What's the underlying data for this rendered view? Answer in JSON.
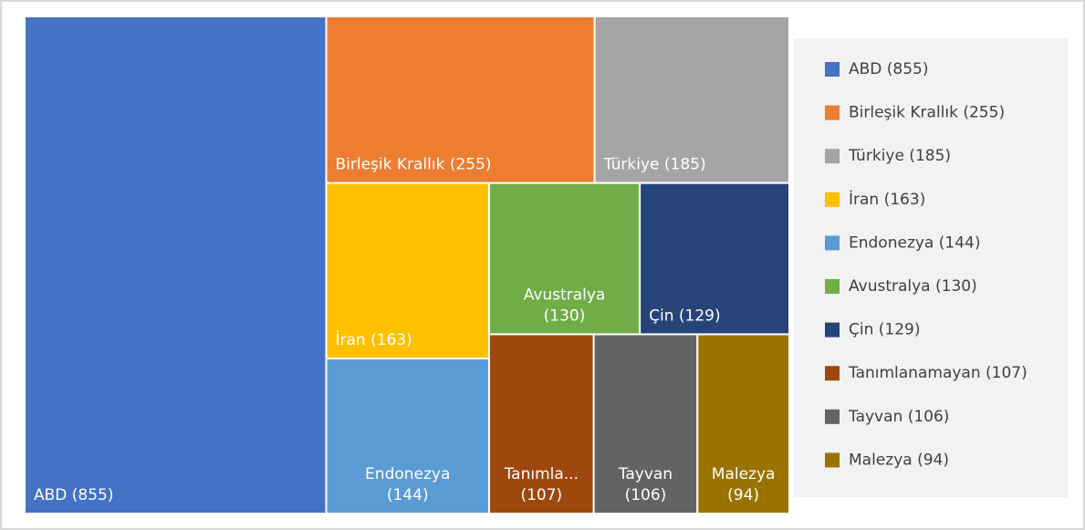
{
  "chart_data": {
    "type": "treemap",
    "labels": [
      "ABD (855)",
      "Birleşik Krallık (255)",
      "Türkiye (185)",
      "İran (163)",
      "Endonezya (144)",
      "Avustralya (130)",
      "Çin (129)",
      "Tanımlanamayan (107)",
      "Tayvan (106)",
      "Malezya (94)"
    ],
    "values": [
      855,
      255,
      185,
      163,
      144,
      130,
      129,
      107,
      106,
      94
    ],
    "value_labels": [
      [
        "ABD (855)"
      ],
      [
        "Birleşik Krallık (255)"
      ],
      [
        "Türkiye (185)"
      ],
      [
        "İran (163)"
      ],
      [
        "Endonezya",
        "(144)"
      ],
      [
        "Avustralya",
        "(130)"
      ],
      [
        "Çin (129)"
      ],
      [
        "Tanımla...",
        "(107)"
      ],
      [
        "Tayvan",
        "(106)"
      ],
      [
        "Malezya",
        "(94)"
      ]
    ],
    "colors": [
      "#4472c4",
      "#ed7d31",
      "#a5a5a5",
      "#ffc000",
      "#5b9bd5",
      "#70ad47",
      "#264478",
      "#9e480e",
      "#636363",
      "#997300"
    ],
    "legend": "right"
  }
}
